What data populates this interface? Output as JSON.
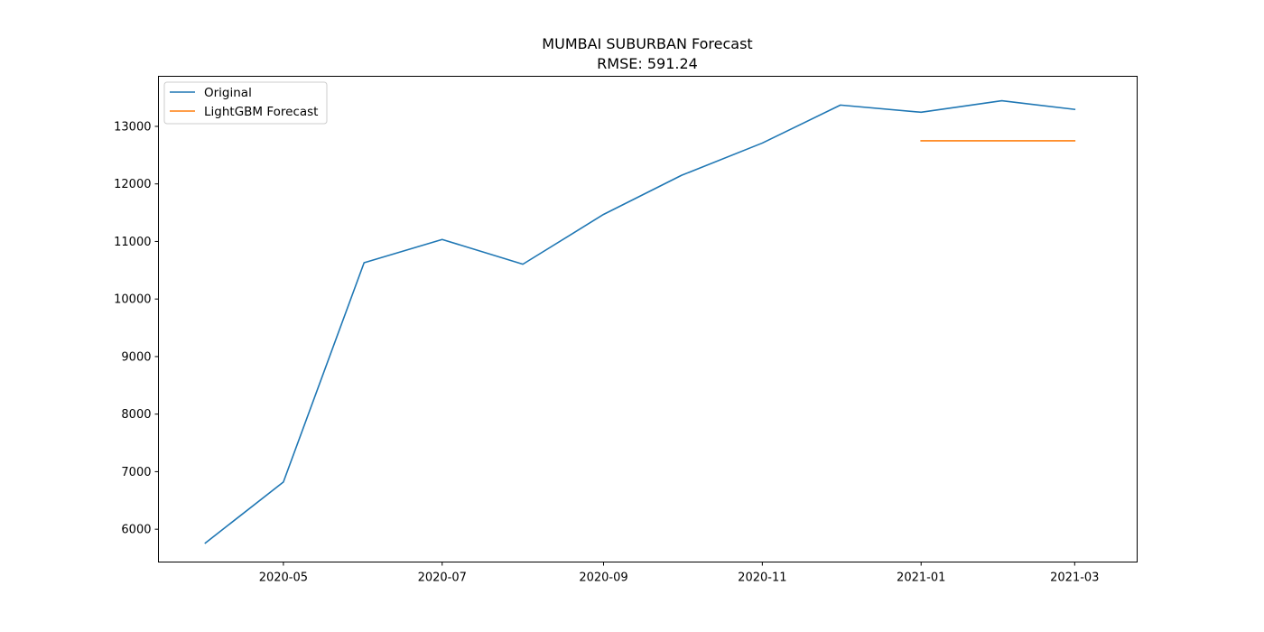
{
  "chart_data": {
    "type": "line",
    "title": "MUMBAI SUBURBAN Forecast",
    "subtitle": "RMSE: 591.24",
    "xlabel": "",
    "ylabel": "",
    "x_ticks": [
      "2020-05",
      "2020-07",
      "2020-09",
      "2020-11",
      "2021-01",
      "2021-03"
    ],
    "y_ticks": [
      6000,
      7000,
      8000,
      9000,
      10000,
      11000,
      12000,
      13000
    ],
    "ylim": [
      5430,
      13870
    ],
    "xlim": [
      "2020-03-14",
      "2021-03-25"
    ],
    "grid": false,
    "legend_position": "top-left",
    "series": [
      {
        "name": "Original",
        "color": "#1f77b4",
        "x": [
          "2020-04-01",
          "2020-05-01",
          "2020-06-01",
          "2020-07-01",
          "2020-08-01",
          "2020-09-01",
          "2020-10-01",
          "2020-11-01",
          "2020-12-01",
          "2021-01-01",
          "2021-02-01",
          "2021-03-01"
        ],
        "values": [
          5760,
          6820,
          10630,
          11035,
          10605,
          11470,
          12150,
          12710,
          13370,
          13245,
          13445,
          13295
        ]
      },
      {
        "name": "LightGBM Forecast",
        "color": "#ff7f0e",
        "x": [
          "2021-01-01",
          "2021-02-01",
          "2021-03-01"
        ],
        "values": [
          12750,
          12750,
          12750
        ]
      }
    ]
  }
}
